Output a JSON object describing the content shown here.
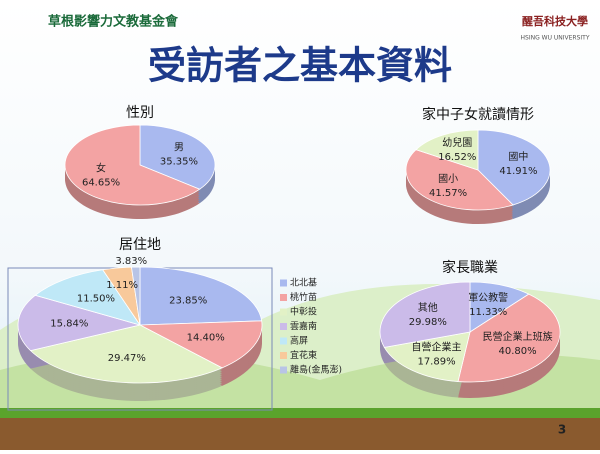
{
  "slide": {
    "title": "受訪者之基本資料",
    "page_number": "3",
    "logo_left": "草根影響力文教基金會",
    "logo_right": "醒吾科技大學",
    "logo_right_sub": "HSING WU UNIVERSITY"
  },
  "chart_data": [
    {
      "type": "pie",
      "title": "性別",
      "categories": [
        "男",
        "女"
      ],
      "values": [
        35.35,
        64.65
      ],
      "value_labels": [
        "35.35%",
        "64.65%"
      ],
      "colors": [
        "#a9b9ef",
        "#f3a3a3"
      ],
      "show_category_in_label": true
    },
    {
      "type": "pie",
      "title": "家中子女就讀情形",
      "categories": [
        "國中",
        "國小",
        "幼兒園"
      ],
      "values": [
        41.91,
        41.57,
        16.52
      ],
      "value_labels": [
        "41.91%",
        "41.57%",
        "16.52%"
      ],
      "colors": [
        "#a9b9ef",
        "#f3a3a3",
        "#e2f1c6"
      ],
      "show_category_in_label": true
    },
    {
      "type": "pie",
      "title": "居住地",
      "categories": [
        "北北基",
        "桃竹苗",
        "中彰投",
        "雲嘉南",
        "高屏",
        "宜花東",
        "離島(金馬澎)"
      ],
      "values": [
        23.85,
        14.4,
        29.47,
        15.84,
        11.5,
        3.83,
        1.11
      ],
      "value_labels": [
        "23.85%",
        "14.40%",
        "29.47%",
        "15.84%",
        "11.50%",
        "3.83%",
        "1.11%"
      ],
      "colors": [
        "#a9b9ef",
        "#f3a3a3",
        "#e2f1c6",
        "#cbbbe9",
        "#bfe8f7",
        "#f8c99b",
        "#b8c4e6"
      ],
      "show_category_in_label": false,
      "legend": "right"
    },
    {
      "type": "pie",
      "title": "家長職業",
      "categories": [
        "軍公教警",
        "民營企業上班族",
        "自營企業主",
        "其他"
      ],
      "values": [
        11.33,
        40.8,
        17.89,
        29.98
      ],
      "value_labels": [
        "11.33%",
        "40.80%",
        "17.89%",
        "29.98%"
      ],
      "colors": [
        "#a9b9ef",
        "#f3a3a3",
        "#e2f1c6",
        "#cbbbe9"
      ],
      "show_category_in_label": true
    }
  ]
}
